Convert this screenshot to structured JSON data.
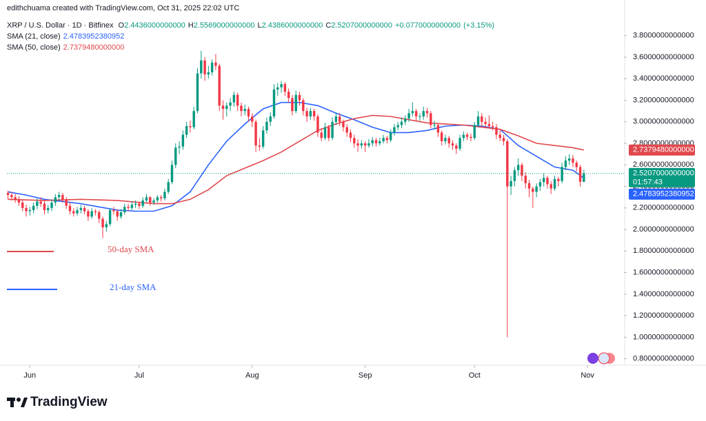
{
  "header": {
    "credit": "edithchuama created with TradingView.com, Oct 31, 2025 22:02 UTC"
  },
  "chart_data": {
    "type": "candlestick",
    "symbol": "XRP / U.S. Dollar · 1D · Bitfinex",
    "ohlc_legend": [
      {
        "key": "O",
        "text": "2.4436000000000"
      },
      {
        "key": "H",
        "text": "2.5569000000000"
      },
      {
        "key": "L",
        "text": "2.4386000000000"
      },
      {
        "key": "C",
        "text": "2.5207000000000"
      }
    ],
    "change": "+0.0770000000000",
    "change_pct": "(+3.15%)",
    "up_color": "#089981",
    "down_color": "#f23645",
    "candles": [
      [
        2.34,
        2.36,
        2.28,
        2.32
      ],
      [
        2.32,
        2.35,
        2.27,
        2.3
      ],
      [
        2.3,
        2.33,
        2.25,
        2.28
      ],
      [
        2.28,
        2.31,
        2.22,
        2.25
      ],
      [
        2.25,
        2.28,
        2.17,
        2.2
      ],
      [
        2.2,
        2.23,
        2.12,
        2.17
      ],
      [
        2.17,
        2.21,
        2.13,
        2.18
      ],
      [
        2.18,
        2.25,
        2.15,
        2.22
      ],
      [
        2.22,
        2.29,
        2.19,
        2.26
      ],
      [
        2.26,
        2.3,
        2.21,
        2.24
      ],
      [
        2.24,
        2.27,
        2.14,
        2.18
      ],
      [
        2.18,
        2.23,
        2.15,
        2.2
      ],
      [
        2.2,
        2.28,
        2.17,
        2.25
      ],
      [
        2.25,
        2.33,
        2.22,
        2.3
      ],
      [
        2.3,
        2.35,
        2.27,
        2.32
      ],
      [
        2.32,
        2.34,
        2.25,
        2.28
      ],
      [
        2.28,
        2.3,
        2.19,
        2.22
      ],
      [
        2.22,
        2.25,
        2.14,
        2.17
      ],
      [
        2.17,
        2.2,
        2.12,
        2.15
      ],
      [
        2.15,
        2.21,
        2.13,
        2.18
      ],
      [
        2.18,
        2.23,
        2.15,
        2.2
      ],
      [
        2.2,
        2.22,
        2.14,
        2.17
      ],
      [
        2.17,
        2.19,
        2.08,
        2.12
      ],
      [
        2.12,
        2.2,
        2.1,
        2.17
      ],
      [
        2.17,
        2.19,
        2.13,
        2.16
      ],
      [
        2.16,
        2.18,
        2.06,
        2.1
      ],
      [
        2.1,
        2.12,
        1.92,
        2.02
      ],
      [
        2.02,
        2.08,
        1.98,
        2.05
      ],
      [
        2.05,
        2.2,
        2.03,
        2.18
      ],
      [
        2.18,
        2.21,
        2.14,
        2.17
      ],
      [
        2.17,
        2.19,
        2.08,
        2.12
      ],
      [
        2.12,
        2.19,
        2.1,
        2.16
      ],
      [
        2.16,
        2.24,
        2.14,
        2.21
      ],
      [
        2.21,
        2.24,
        2.17,
        2.2
      ],
      [
        2.2,
        2.26,
        2.18,
        2.23
      ],
      [
        2.23,
        2.27,
        2.2,
        2.24
      ],
      [
        2.24,
        2.26,
        2.19,
        2.22
      ],
      [
        2.22,
        2.3,
        2.2,
        2.27
      ],
      [
        2.27,
        2.33,
        2.25,
        2.3
      ],
      [
        2.3,
        2.31,
        2.22,
        2.25
      ],
      [
        2.25,
        2.29,
        2.23,
        2.27
      ],
      [
        2.27,
        2.32,
        2.25,
        2.3
      ],
      [
        2.3,
        2.32,
        2.26,
        2.29
      ],
      [
        2.29,
        2.38,
        2.27,
        2.35
      ],
      [
        2.35,
        2.47,
        2.33,
        2.44
      ],
      [
        2.44,
        2.64,
        2.42,
        2.6
      ],
      [
        2.6,
        2.8,
        2.57,
        2.76
      ],
      [
        2.76,
        2.82,
        2.7,
        2.77
      ],
      [
        2.77,
        2.92,
        2.74,
        2.88
      ],
      [
        2.88,
        3.0,
        2.85,
        2.96
      ],
      [
        2.96,
        3.01,
        2.9,
        2.95
      ],
      [
        2.95,
        3.14,
        2.93,
        3.1
      ],
      [
        3.1,
        3.5,
        3.08,
        3.45
      ],
      [
        3.45,
        3.66,
        3.4,
        3.57
      ],
      [
        3.57,
        3.6,
        3.38,
        3.44
      ],
      [
        3.44,
        3.52,
        3.4,
        3.46
      ],
      [
        3.46,
        3.58,
        3.43,
        3.55
      ],
      [
        3.55,
        3.63,
        3.48,
        3.52
      ],
      [
        3.52,
        3.54,
        3.1,
        3.15
      ],
      [
        3.15,
        3.2,
        3.02,
        3.12
      ],
      [
        3.12,
        3.18,
        3.05,
        3.15
      ],
      [
        3.15,
        3.22,
        3.1,
        3.18
      ],
      [
        3.18,
        3.28,
        3.14,
        3.25
      ],
      [
        3.25,
        3.27,
        3.1,
        3.15
      ],
      [
        3.15,
        3.18,
        3.05,
        3.1
      ],
      [
        3.1,
        3.16,
        3.06,
        3.12
      ],
      [
        3.12,
        3.14,
        3.0,
        3.05
      ],
      [
        3.05,
        3.08,
        2.95,
        3.0
      ],
      [
        3.0,
        3.02,
        2.72,
        2.78
      ],
      [
        2.78,
        2.85,
        2.73,
        2.77
      ],
      [
        2.77,
        2.96,
        2.75,
        2.92
      ],
      [
        2.92,
        3.04,
        2.89,
        3.0
      ],
      [
        3.0,
        3.09,
        2.96,
        3.05
      ],
      [
        3.05,
        3.35,
        3.03,
        3.3
      ],
      [
        3.3,
        3.36,
        3.24,
        3.32
      ],
      [
        3.32,
        3.38,
        3.27,
        3.35
      ],
      [
        3.35,
        3.37,
        3.24,
        3.28
      ],
      [
        3.28,
        3.31,
        3.18,
        3.22
      ],
      [
        3.22,
        3.25,
        3.06,
        3.1
      ],
      [
        3.1,
        3.29,
        3.08,
        3.25
      ],
      [
        3.25,
        3.28,
        3.15,
        3.2
      ],
      [
        3.2,
        3.22,
        3.06,
        3.1
      ],
      [
        3.1,
        3.13,
        3.0,
        3.05
      ],
      [
        3.05,
        3.13,
        3.02,
        3.1
      ],
      [
        3.1,
        3.12,
        3.01,
        3.05
      ],
      [
        3.05,
        3.07,
        2.86,
        2.9
      ],
      [
        2.9,
        2.94,
        2.82,
        2.85
      ],
      [
        2.85,
        2.99,
        2.83,
        2.95
      ],
      [
        2.95,
        2.97,
        2.82,
        2.85
      ],
      [
        2.85,
        3.04,
        2.83,
        3.0
      ],
      [
        3.0,
        3.09,
        2.97,
        3.05
      ],
      [
        3.05,
        3.08,
        2.96,
        3.0
      ],
      [
        3.0,
        3.02,
        2.91,
        2.95
      ],
      [
        2.95,
        2.98,
        2.86,
        2.9
      ],
      [
        2.9,
        2.93,
        2.81,
        2.85
      ],
      [
        2.85,
        2.88,
        2.76,
        2.8
      ],
      [
        2.8,
        2.84,
        2.72,
        2.78
      ],
      [
        2.78,
        2.83,
        2.75,
        2.8
      ],
      [
        2.8,
        2.82,
        2.72,
        2.78
      ],
      [
        2.78,
        2.84,
        2.76,
        2.8
      ],
      [
        2.8,
        2.86,
        2.77,
        2.83
      ],
      [
        2.83,
        2.85,
        2.77,
        2.8
      ],
      [
        2.8,
        2.85,
        2.78,
        2.82
      ],
      [
        2.82,
        2.88,
        2.8,
        2.85
      ],
      [
        2.85,
        2.87,
        2.8,
        2.83
      ],
      [
        2.83,
        2.93,
        2.81,
        2.9
      ],
      [
        2.9,
        2.98,
        2.87,
        2.95
      ],
      [
        2.95,
        3.0,
        2.92,
        2.97
      ],
      [
        2.97,
        3.04,
        2.94,
        3.0
      ],
      [
        3.0,
        3.06,
        2.97,
        3.03
      ],
      [
        3.03,
        3.12,
        3.0,
        3.08
      ],
      [
        3.08,
        3.18,
        3.05,
        3.1
      ],
      [
        3.1,
        3.12,
        3.01,
        3.05
      ],
      [
        3.05,
        3.08,
        3.01,
        3.05
      ],
      [
        3.05,
        3.14,
        3.02,
        3.1
      ],
      [
        3.1,
        3.13,
        3.04,
        3.08
      ],
      [
        3.08,
        3.1,
        2.94,
        2.97
      ],
      [
        2.97,
        3.01,
        2.93,
        2.97
      ],
      [
        2.97,
        2.99,
        2.86,
        2.9
      ],
      [
        2.9,
        2.92,
        2.78,
        2.82
      ],
      [
        2.82,
        2.88,
        2.79,
        2.85
      ],
      [
        2.85,
        2.87,
        2.76,
        2.8
      ],
      [
        2.8,
        2.83,
        2.74,
        2.78
      ],
      [
        2.78,
        2.8,
        2.7,
        2.75
      ],
      [
        2.75,
        2.88,
        2.73,
        2.85
      ],
      [
        2.85,
        2.91,
        2.82,
        2.88
      ],
      [
        2.88,
        2.9,
        2.83,
        2.86
      ],
      [
        2.86,
        2.89,
        2.82,
        2.85
      ],
      [
        2.85,
        3.0,
        2.83,
        2.97
      ],
      [
        2.97,
        3.1,
        2.95,
        3.05
      ],
      [
        3.05,
        3.08,
        2.96,
        3.0
      ],
      [
        3.0,
        3.04,
        2.95,
        2.98
      ],
      [
        2.98,
        3.06,
        2.94,
        2.96
      ],
      [
        2.96,
        3.0,
        2.92,
        2.95
      ],
      [
        2.95,
        2.98,
        2.84,
        2.88
      ],
      [
        2.88,
        2.92,
        2.82,
        2.85
      ],
      [
        2.85,
        2.88,
        2.78,
        2.82
      ],
      [
        2.82,
        2.84,
        1.0,
        2.4
      ],
      [
        2.4,
        2.5,
        2.32,
        2.45
      ],
      [
        2.45,
        2.58,
        2.4,
        2.55
      ],
      [
        2.55,
        2.66,
        2.5,
        2.6
      ],
      [
        2.6,
        2.62,
        2.45,
        2.5
      ],
      [
        2.5,
        2.53,
        2.38,
        2.43
      ],
      [
        2.43,
        2.46,
        2.3,
        2.38
      ],
      [
        2.38,
        2.4,
        2.2,
        2.35
      ],
      [
        2.35,
        2.43,
        2.3,
        2.4
      ],
      [
        2.4,
        2.47,
        2.36,
        2.44
      ],
      [
        2.44,
        2.52,
        2.4,
        2.48
      ],
      [
        2.48,
        2.5,
        2.38,
        2.42
      ],
      [
        2.42,
        2.45,
        2.33,
        2.38
      ],
      [
        2.38,
        2.5,
        2.36,
        2.47
      ],
      [
        2.47,
        2.49,
        2.4,
        2.45
      ],
      [
        2.45,
        2.62,
        2.43,
        2.58
      ],
      [
        2.58,
        2.68,
        2.55,
        2.64
      ],
      [
        2.64,
        2.7,
        2.6,
        2.66
      ],
      [
        2.66,
        2.69,
        2.58,
        2.62
      ],
      [
        2.62,
        2.64,
        2.54,
        2.58
      ],
      [
        2.58,
        2.6,
        2.4,
        2.4436
      ],
      [
        2.4436,
        2.5569,
        2.4386,
        2.5207
      ]
    ],
    "last_label": "2.5207000000000",
    "countdown": "01:57:43",
    "series": [
      {
        "name": "SMA (21, close)",
        "value_label": "2.4783952380952",
        "color": "#2962ff",
        "x": [
          0,
          5,
          10,
          15,
          20,
          25,
          30,
          35,
          40,
          45,
          50,
          55,
          60,
          65,
          70,
          75,
          80,
          85,
          90,
          95,
          100,
          105,
          110,
          115,
          120,
          125,
          130,
          135,
          140,
          145,
          150,
          155,
          158
        ],
        "values": [
          2.35,
          2.32,
          2.28,
          2.26,
          2.24,
          2.21,
          2.18,
          2.17,
          2.17,
          2.22,
          2.35,
          2.6,
          2.82,
          2.98,
          3.12,
          3.18,
          3.18,
          3.15,
          3.08,
          3.02,
          2.95,
          2.9,
          2.9,
          2.92,
          2.96,
          2.97,
          2.96,
          2.93,
          2.78,
          2.68,
          2.58,
          2.55,
          2.4783952380952
        ]
      },
      {
        "name": "SMA (50, close)",
        "value_label": "2.7379480000000",
        "color": "#e0474c",
        "x": [
          0,
          10,
          20,
          30,
          40,
          45,
          50,
          55,
          60,
          65,
          70,
          75,
          80,
          85,
          90,
          95,
          100,
          105,
          110,
          115,
          120,
          125,
          130,
          135,
          140,
          145,
          150,
          155,
          158
        ],
        "values": [
          2.28,
          2.27,
          2.28,
          2.27,
          2.24,
          2.24,
          2.28,
          2.37,
          2.5,
          2.57,
          2.64,
          2.72,
          2.82,
          2.92,
          2.98,
          3.03,
          3.06,
          3.05,
          3.02,
          2.99,
          2.98,
          2.97,
          2.95,
          2.93,
          2.87,
          2.8,
          2.78,
          2.76,
          2.737948
        ]
      }
    ],
    "annotations": [
      {
        "text": "50-day SMA",
        "color": "#e0474c"
      },
      {
        "text": "21-day SMA",
        "color": "#2962ff"
      }
    ],
    "xlim": [
      -0.3,
      169
    ],
    "xticks": [
      {
        "value": 6,
        "label": "Jun"
      },
      {
        "value": 36,
        "label": "Jul"
      },
      {
        "value": 67,
        "label": "Aug"
      },
      {
        "value": 98,
        "label": "Sep"
      },
      {
        "value": 128,
        "label": "Oct"
      },
      {
        "value": 159,
        "label": "Nov"
      }
    ],
    "ylim": [
      0.74,
      4.08
    ],
    "yticks": [
      {
        "value": 0.8,
        "label": "0.8000000000000"
      },
      {
        "value": 1,
        "label": "1.0000000000000"
      },
      {
        "value": 1.2,
        "label": "1.2000000000000"
      },
      {
        "value": 1.4,
        "label": "1.4000000000000"
      },
      {
        "value": 1.6,
        "label": "1.6000000000000"
      },
      {
        "value": 1.8,
        "label": "1.8000000000000"
      },
      {
        "value": 2,
        "label": "2.0000000000000"
      },
      {
        "value": 2.2,
        "label": "2.2000000000000"
      },
      {
        "value": 2.4,
        "label": "2.4000000000000"
      },
      {
        "value": 2.6,
        "label": "2.6000000000000"
      },
      {
        "value": 2.8,
        "label": "2.8000000000000"
      },
      {
        "value": 3,
        "label": "3.0000000000000"
      },
      {
        "value": 3.2,
        "label": "3.2000000000000"
      },
      {
        "value": 3.4,
        "label": "3.4000000000000"
      },
      {
        "value": 3.6,
        "label": "3.6000000000000"
      },
      {
        "value": 3.8,
        "label": "3.8000000000000"
      }
    ],
    "grid": false
  },
  "footer": {
    "brand": "TradingView"
  }
}
